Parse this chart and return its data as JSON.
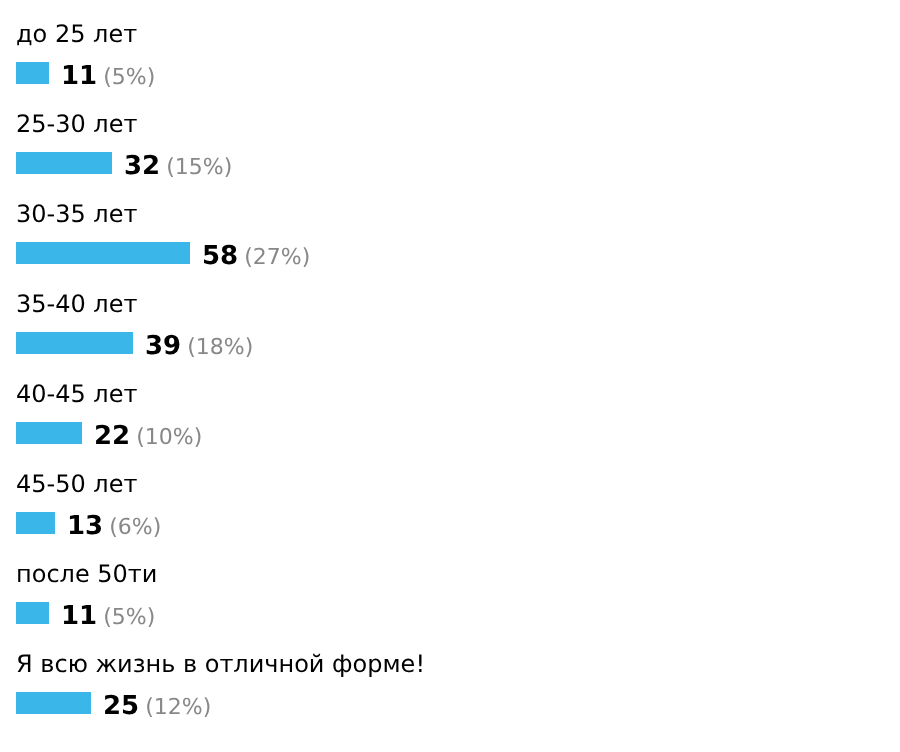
{
  "chart_data": {
    "type": "bar",
    "orientation": "horizontal",
    "categories": [
      "до 25 лет",
      "25-30 лет",
      "30-35 лет",
      "35-40 лет",
      "40-45 лет",
      "45-50 лет",
      "после 50ти",
      "Я всю жизнь в отличной форме!"
    ],
    "values": [
      11,
      32,
      58,
      39,
      22,
      13,
      11,
      25
    ],
    "value_labels": [
      "11 (5%)",
      "32 (15%)",
      "58 (27%)",
      "39 (18%)",
      "22 (10%)",
      "13 (6%)",
      "11 (5%)",
      "25 (12%)"
    ],
    "color": "#3ab6e8"
  }
}
